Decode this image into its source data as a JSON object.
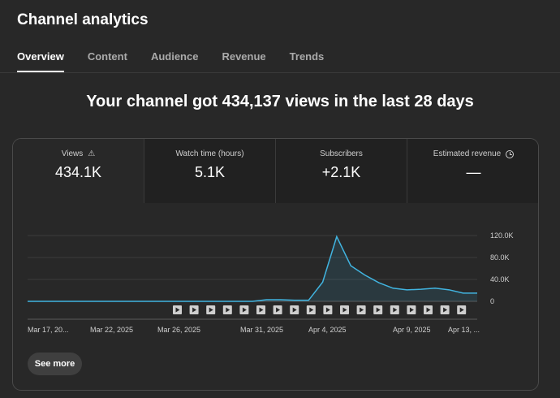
{
  "header": {
    "title": "Channel analytics"
  },
  "tabs": [
    {
      "label": "Overview",
      "active": true
    },
    {
      "label": "Content",
      "active": false
    },
    {
      "label": "Audience",
      "active": false
    },
    {
      "label": "Revenue",
      "active": false
    },
    {
      "label": "Trends",
      "active": false
    }
  ],
  "headline": "Your channel got 434,137 views in the last 28 days",
  "metrics": [
    {
      "label": "Views",
      "value": "434.1K",
      "icon": "warning-icon",
      "active": true
    },
    {
      "label": "Watch time (hours)",
      "value": "5.1K",
      "active": false
    },
    {
      "label": "Subscribers",
      "value": "+2.1K",
      "active": false
    },
    {
      "label": "Estimated revenue",
      "value": "—",
      "icon": "clock-icon",
      "active": false
    }
  ],
  "see_more_label": "See more",
  "chart_data": {
    "type": "area",
    "series": [
      {
        "values": [
          0,
          0,
          0,
          0,
          0,
          0,
          0,
          0,
          0,
          0,
          0,
          0,
          0,
          0,
          0,
          0,
          0,
          3000,
          3000,
          2000,
          2000,
          35000,
          118000,
          65000,
          48000,
          34000,
          24000,
          21000,
          22000,
          24000,
          21000,
          15000,
          15000
        ]
      }
    ],
    "x_tick_labels": [
      "Mar 17, 20...",
      "Mar 22, 2025",
      "Mar 26, 2025",
      "Mar 31, 2025",
      "Apr 4, 2025",
      "Apr 9, 2025",
      "Apr 13, ..."
    ],
    "y_tick_labels": [
      "120.0K",
      "80.0K",
      "40.0K",
      "0"
    ],
    "ylim": [
      0,
      120000
    ],
    "line_color": "#41b4e0",
    "grid": true,
    "video_markers": 18
  }
}
